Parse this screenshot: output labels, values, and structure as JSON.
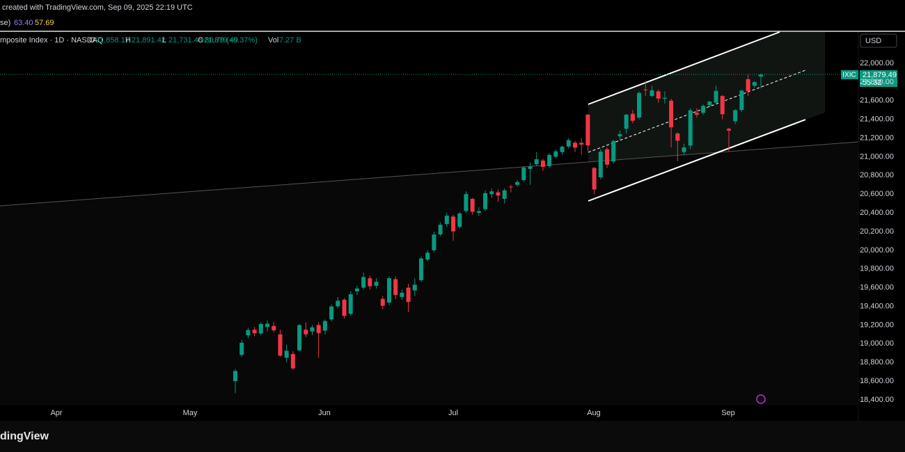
{
  "header": {
    "credit": "created with TradingView.com, Sep 09, 2025 22:19 UTC",
    "indicator": {
      "name": "se)",
      "values": [
        "63.40",
        "57.69"
      ]
    },
    "symbol": "mposite Index · 1D · NASDAQ",
    "ohlc": [
      {
        "key": "O",
        "value": "21,858.17"
      },
      {
        "key": "H",
        "value": "21,891.42"
      },
      {
        "key": "L",
        "value": "21,731.48"
      },
      {
        "key": "C",
        "value": "21,879.49"
      }
    ],
    "change": "+80.79 (+0.37%)",
    "volume_key": "Vol",
    "volume": "7.27 B",
    "currency": "USD"
  },
  "price_tag": {
    "ticker": "IXIC",
    "price": "21,879.49",
    "countdown": "55:32"
  },
  "footer": {
    "brand": "dingView"
  },
  "chart_data": {
    "type": "candlestick",
    "up_color": "#089981",
    "down_color": "#f23645",
    "grid": false,
    "x_labels": [
      "Apr",
      "May",
      "Jun",
      "Jul",
      "Aug",
      "Sep"
    ],
    "ylim": [
      18340,
      22335
    ],
    "yticks": [
      {
        "value": 18400,
        "label": "18,400.00"
      },
      {
        "value": 18600,
        "label": "18,600.00"
      },
      {
        "value": 18800,
        "label": "18,800.00"
      },
      {
        "value": 19000,
        "label": "19,000.00"
      },
      {
        "value": 19200,
        "label": "19,200.00"
      },
      {
        "value": 19400,
        "label": "19,400.00"
      },
      {
        "value": 19600,
        "label": "19,600.00"
      },
      {
        "value": 19800,
        "label": "19,800.00"
      },
      {
        "value": 20000,
        "label": "20,000.00"
      },
      {
        "value": 20200,
        "label": "20,200.00"
      },
      {
        "value": 20400,
        "label": "20,400.00"
      },
      {
        "value": 20600,
        "label": "20,600.00"
      },
      {
        "value": 20800,
        "label": "20,800.00"
      },
      {
        "value": 21000,
        "label": "21,000.00"
      },
      {
        "value": 21200,
        "label": "21,200.00"
      },
      {
        "value": 21400,
        "label": "21,400.00"
      },
      {
        "value": 21600,
        "label": "21,600.00"
      },
      {
        "value": 21800,
        "label": "21,800.00"
      },
      {
        "value": 22000,
        "label": "22,000.00"
      }
    ],
    "open": [
      18600,
      18880,
      19090,
      19150,
      19110,
      19180,
      19190,
      19100,
      18850,
      18890,
      18930,
      19150,
      19130,
      19200,
      19140,
      19260,
      19400,
      19470,
      19320,
      19560,
      19600,
      19700,
      19620,
      19480,
      19440,
      19690,
      19500,
      19600,
      19570,
      19680,
      19900,
      20000,
      20170,
      20280,
      20360,
      20250,
      20420,
      20550,
      20400,
      20440,
      20600,
      20620,
      20550,
      20680,
      20700,
      20750,
      20870,
      20920,
      20960,
      20900,
      21000,
      21050,
      21110,
      21150,
      21150,
      21450,
      20880,
      20780,
      21080,
      20950,
      21220,
      21300,
      21460,
      21420,
      21720,
      21650,
      21700,
      21620,
      21600,
      21250,
      21050,
      21120,
      21470,
      21470,
      21550,
      21580,
      21650,
      21300,
      21380,
      21500,
      21830,
      21760,
      21858.17
    ],
    "high": [
      18730,
      19040,
      19170,
      19180,
      19230,
      19250,
      19230,
      19150,
      18990,
      18920,
      19210,
      19230,
      19200,
      19230,
      19260,
      19420,
      19500,
      19490,
      19560,
      19620,
      19760,
      19730,
      19700,
      19510,
      19720,
      19720,
      19580,
      19640,
      19700,
      19930,
      20000,
      20200,
      20300,
      20400,
      20380,
      20410,
      20630,
      20560,
      20460,
      20640,
      20660,
      20650,
      20660,
      20700,
      20750,
      20900,
      20940,
      21050,
      20980,
      21040,
      21080,
      21120,
      21200,
      21170,
      21200,
      21460,
      20890,
      21080,
      21100,
      21180,
      21280,
      21460,
      21500,
      21700,
      21810,
      21760,
      21720,
      21700,
      21620,
      21260,
      21140,
      21520,
      21520,
      21560,
      21600,
      21760,
      21660,
      21310,
      21510,
      21720,
      21880,
      21810,
      21891.42
    ],
    "low": [
      18470,
      18860,
      19060,
      19080,
      19090,
      19130,
      19120,
      18860,
      18800,
      18720,
      18920,
      19070,
      19090,
      18850,
      19100,
      19240,
      19380,
      19270,
      19300,
      19520,
      19580,
      19580,
      19590,
      19370,
      19410,
      19480,
      19470,
      19340,
      19510,
      19660,
      19880,
      19980,
      20150,
      20250,
      20100,
      20230,
      20400,
      20380,
      20370,
      20420,
      20560,
      20520,
      20500,
      20620,
      20680,
      20730,
      20700,
      20900,
      20850,
      20880,
      20980,
      21020,
      21090,
      21050,
      21020,
      21060,
      20600,
      20760,
      20880,
      20930,
      21180,
      21250,
      21360,
      21400,
      21650,
      21640,
      21580,
      21570,
      21100,
      20950,
      21020,
      21080,
      21420,
      21450,
      21530,
      21560,
      21400,
      21060,
      21350,
      21480,
      21650,
      21740,
      21731.48
    ],
    "close": [
      18708,
      19010,
      19146,
      19112,
      19211,
      19215,
      19143,
      18873,
      18925,
      18737,
      19199,
      19100,
      19175,
      19113,
      19243,
      19398,
      19460,
      19298,
      19529,
      19591,
      19714,
      19615,
      19662,
      19406,
      19701,
      19521,
      19546,
      19447,
      19631,
      19912,
      19974,
      20168,
      20273,
      20370,
      20202,
      20393,
      20601,
      20412,
      20418,
      20611,
      20630,
      20585,
      20640,
      20677,
      20730,
      20885,
      20896,
      20974,
      20892,
      21020,
      21058,
      21108,
      21178,
      21098,
      21130,
      21122,
      20650,
      21053,
      20916,
      21169,
      21242,
      21450,
      21385,
      21682,
      21713,
      21711,
      21623,
      21630,
      21315,
      21172,
      21100,
      21497,
      21449,
      21544,
      21590,
      21705,
      21455,
      21280,
      21498,
      21708,
      21700,
      21799,
      21879.49
    ]
  }
}
